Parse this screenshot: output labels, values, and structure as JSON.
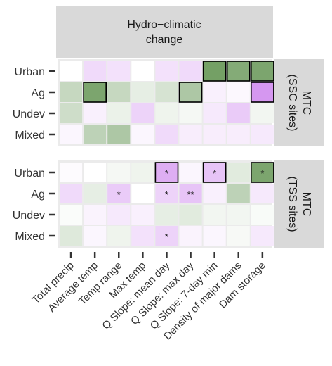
{
  "chart_data": {
    "type": "heatmap",
    "title": "",
    "facet_column_label": [
      "Hydro−climatic",
      "change"
    ],
    "x_categories": [
      "Total precip",
      "Average temp",
      "Temp range",
      "Max temp",
      "Q Slope: mean day",
      "Q Slope: max day",
      "Q Slope: 7-day min",
      "Density of major dams",
      "Dam storage"
    ],
    "y_categories": [
      "Urban",
      "Ag",
      "Undev",
      "Mixed"
    ],
    "legend": "none",
    "value_scale": "diverging: negative = purple, positive = green, 0 = white",
    "colors": {
      "negative": "#c36bea",
      "positive": "#5b8f4a",
      "neutral": "#ffffff",
      "outline": "#000000",
      "strip_bg": "#d9d9d9",
      "panel_bg": "#ebebeb"
    },
    "panels": [
      {
        "label": [
          "MTC",
          "(SSC sites)"
        ],
        "rows": [
          {
            "name": "Urban",
            "values": [
              0.0,
              -0.25,
              -0.2,
              0.0,
              -0.2,
              -0.25,
              0.85,
              0.75,
              0.8
            ],
            "outlined": [
              false,
              false,
              false,
              false,
              false,
              false,
              true,
              true,
              true
            ],
            "stars": [
              "",
              "",
              "",
              "",
              "",
              "",
              "",
              "",
              ""
            ]
          },
          {
            "name": "Ag",
            "values": [
              0.35,
              0.8,
              0.35,
              0.15,
              0.25,
              0.5,
              -0.1,
              -0.05,
              -0.7
            ],
            "outlined": [
              false,
              true,
              false,
              false,
              false,
              true,
              false,
              false,
              true
            ],
            "stars": [
              "",
              "",
              "",
              "",
              "",
              "",
              "",
              "",
              ""
            ]
          },
          {
            "name": "Undev",
            "values": [
              0.3,
              -0.1,
              0.12,
              -0.3,
              0.1,
              0.06,
              -0.15,
              -0.35,
              0.08
            ],
            "outlined": [
              false,
              false,
              false,
              false,
              false,
              false,
              false,
              false,
              false
            ],
            "stars": [
              "",
              "",
              "",
              "",
              "",
              "",
              "",
              "",
              ""
            ]
          },
          {
            "name": "Mixed",
            "values": [
              -0.06,
              0.4,
              0.5,
              -0.06,
              -0.25,
              -0.12,
              -0.12,
              -0.12,
              -0.15
            ],
            "outlined": [
              false,
              false,
              false,
              false,
              false,
              false,
              false,
              false,
              false
            ],
            "stars": [
              "",
              "",
              "",
              "",
              "",
              "",
              "",
              "",
              ""
            ]
          }
        ]
      },
      {
        "label": [
          "MTC",
          "(TSS sites)"
        ],
        "rows": [
          {
            "name": "Urban",
            "values": [
              -0.03,
              0.0,
              0.06,
              0.1,
              -0.55,
              -0.06,
              -0.4,
              0.18,
              0.8
            ],
            "outlined": [
              false,
              false,
              false,
              false,
              true,
              false,
              true,
              false,
              true
            ],
            "stars": [
              "",
              "",
              "",
              "",
              "*",
              "",
              "*",
              "",
              "*"
            ]
          },
          {
            "name": "Ag",
            "values": [
              -0.25,
              0.15,
              -0.35,
              0.0,
              -0.3,
              -0.4,
              -0.1,
              0.4,
              -0.15
            ],
            "outlined": [
              false,
              false,
              false,
              false,
              false,
              false,
              false,
              false,
              false
            ],
            "stars": [
              "",
              "",
              "*",
              "",
              "*",
              "**",
              "",
              "",
              ""
            ]
          },
          {
            "name": "Undev",
            "values": [
              0.03,
              -0.08,
              -0.15,
              -0.1,
              0.15,
              0.18,
              0.08,
              0.08,
              0.04
            ],
            "outlined": [
              false,
              false,
              false,
              false,
              false,
              false,
              false,
              false,
              false
            ],
            "stars": [
              "",
              "",
              "",
              "",
              "",
              "",
              "",
              "",
              ""
            ]
          },
          {
            "name": "Mixed",
            "values": [
              0.2,
              -0.06,
              0.1,
              -0.2,
              -0.3,
              -0.08,
              -0.06,
              0.05,
              -0.15
            ],
            "outlined": [
              false,
              false,
              false,
              false,
              false,
              false,
              false,
              false,
              false
            ],
            "stars": [
              "",
              "",
              "",
              "",
              "*",
              "",
              "",
              "",
              ""
            ]
          }
        ]
      }
    ]
  }
}
